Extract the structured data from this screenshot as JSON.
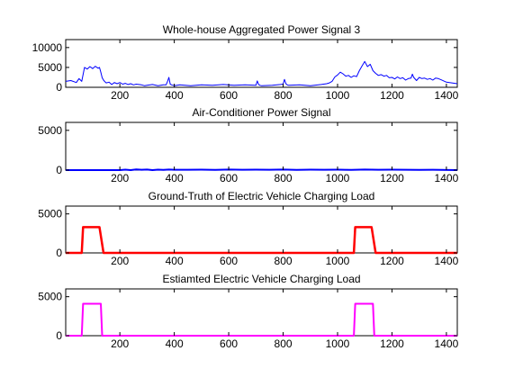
{
  "chart_data": [
    {
      "type": "line",
      "title": "Whole-house Aggregated Power Signal 3",
      "xlim": [
        1,
        1440
      ],
      "ylim": [
        0,
        12000
      ],
      "xticks": [
        200,
        400,
        600,
        800,
        1000,
        1200,
        1400
      ],
      "yticks": [
        0,
        5000,
        10000
      ],
      "color": "#0000ff",
      "series": [
        {
          "x": [
            1,
            20,
            40,
            50,
            60,
            70,
            80,
            90,
            100,
            110,
            120,
            125,
            130,
            135,
            140,
            145,
            150,
            160,
            170,
            180,
            190,
            200,
            210,
            220,
            230,
            240,
            250,
            260,
            270,
            280,
            290,
            300,
            320,
            340,
            360,
            370,
            375,
            380,
            385,
            390,
            400,
            420,
            440,
            460,
            480,
            500,
            540,
            580,
            620,
            660,
            700,
            705,
            710,
            715,
            720,
            760,
            790,
            800,
            805,
            810,
            815,
            820,
            860,
            900,
            940,
            960,
            970,
            980,
            990,
            1000,
            1010,
            1020,
            1030,
            1040,
            1050,
            1060,
            1070,
            1080,
            1090,
            1100,
            1110,
            1120,
            1130,
            1140,
            1150,
            1160,
            1170,
            1180,
            1190,
            1200,
            1210,
            1220,
            1230,
            1240,
            1250,
            1260,
            1270,
            1275,
            1280,
            1290,
            1300,
            1310,
            1320,
            1330,
            1340,
            1350,
            1360,
            1370,
            1380,
            1390,
            1400,
            1420,
            1440
          ],
          "y": [
            1500,
            1700,
            1200,
            2200,
            1500,
            5000,
            4600,
            5200,
            4700,
            5300,
            4800,
            5000,
            3800,
            2400,
            1800,
            1400,
            1100,
            1300,
            700,
            1200,
            900,
            1200,
            800,
            1000,
            700,
            900,
            600,
            800,
            700,
            600,
            400,
            500,
            700,
            400,
            600,
            600,
            1500,
            2500,
            800,
            600,
            400,
            600,
            500,
            400,
            500,
            600,
            500,
            700,
            500,
            600,
            500,
            1600,
            700,
            500,
            400,
            500,
            700,
            800,
            2000,
            900,
            600,
            500,
            600,
            400,
            700,
            900,
            1100,
            1500,
            2600,
            3100,
            3800,
            3400,
            2800,
            3000,
            2500,
            2900,
            2700,
            4200,
            5400,
            6500,
            5200,
            5800,
            4200,
            3500,
            3000,
            3200,
            2800,
            3000,
            2400,
            2500,
            2100,
            2600,
            2200,
            2400,
            1800,
            2200,
            2300,
            3300,
            2500,
            1700,
            2500,
            2200,
            2300,
            2000,
            2200,
            1800,
            2300,
            2200,
            1900,
            1600,
            1300,
            1100,
            900
          ]
        }
      ]
    },
    {
      "type": "line",
      "title": "Air-Conditioner Power Signal",
      "xlim": [
        1,
        1440
      ],
      "ylim": [
        0,
        6000
      ],
      "xticks": [
        200,
        400,
        600,
        800,
        1000,
        1200,
        1400
      ],
      "yticks": [
        0,
        5000
      ],
      "color": "#0000ff",
      "series": [
        {
          "x": [
            1,
            200,
            220,
            240,
            260,
            280,
            300,
            320,
            340,
            360,
            380,
            400,
            450,
            500,
            550,
            600,
            650,
            700,
            750,
            800,
            850,
            900,
            950,
            1000,
            1050,
            1100,
            1150,
            1200,
            1250,
            1300,
            1350,
            1440
          ],
          "y": [
            0,
            0,
            60,
            0,
            80,
            40,
            70,
            0,
            60,
            30,
            70,
            40,
            50,
            60,
            30,
            70,
            40,
            60,
            50,
            70,
            30,
            60,
            50,
            60,
            30,
            70,
            40,
            60,
            50,
            30,
            40,
            0
          ]
        }
      ]
    },
    {
      "type": "line",
      "title": "Ground-Truth of Electric Vehicle Charging Load",
      "xlim": [
        1,
        1440
      ],
      "ylim": [
        0,
        6000
      ],
      "xticks": [
        200,
        400,
        600,
        800,
        1000,
        1200,
        1400
      ],
      "yticks": [
        0,
        5000
      ],
      "color": "#ff0000",
      "series": [
        {
          "x": [
            1,
            60,
            65,
            125,
            140,
            1060,
            1065,
            1125,
            1140,
            1440
          ],
          "y": [
            0,
            0,
            3300,
            3300,
            0,
            0,
            3300,
            3300,
            0,
            0
          ]
        }
      ]
    },
    {
      "type": "line",
      "title": "Estiamted Electric Vehicle Charging Load",
      "xlim": [
        1,
        1440
      ],
      "ylim": [
        0,
        6000
      ],
      "xticks": [
        200,
        400,
        600,
        800,
        1000,
        1200,
        1400
      ],
      "yticks": [
        0,
        5000
      ],
      "color": "#ff00ff",
      "series": [
        {
          "x": [
            1,
            60,
            65,
            130,
            135,
            1060,
            1065,
            1130,
            1135,
            1440
          ],
          "y": [
            0,
            0,
            4100,
            4100,
            0,
            0,
            4100,
            4100,
            0,
            0
          ]
        }
      ]
    }
  ]
}
